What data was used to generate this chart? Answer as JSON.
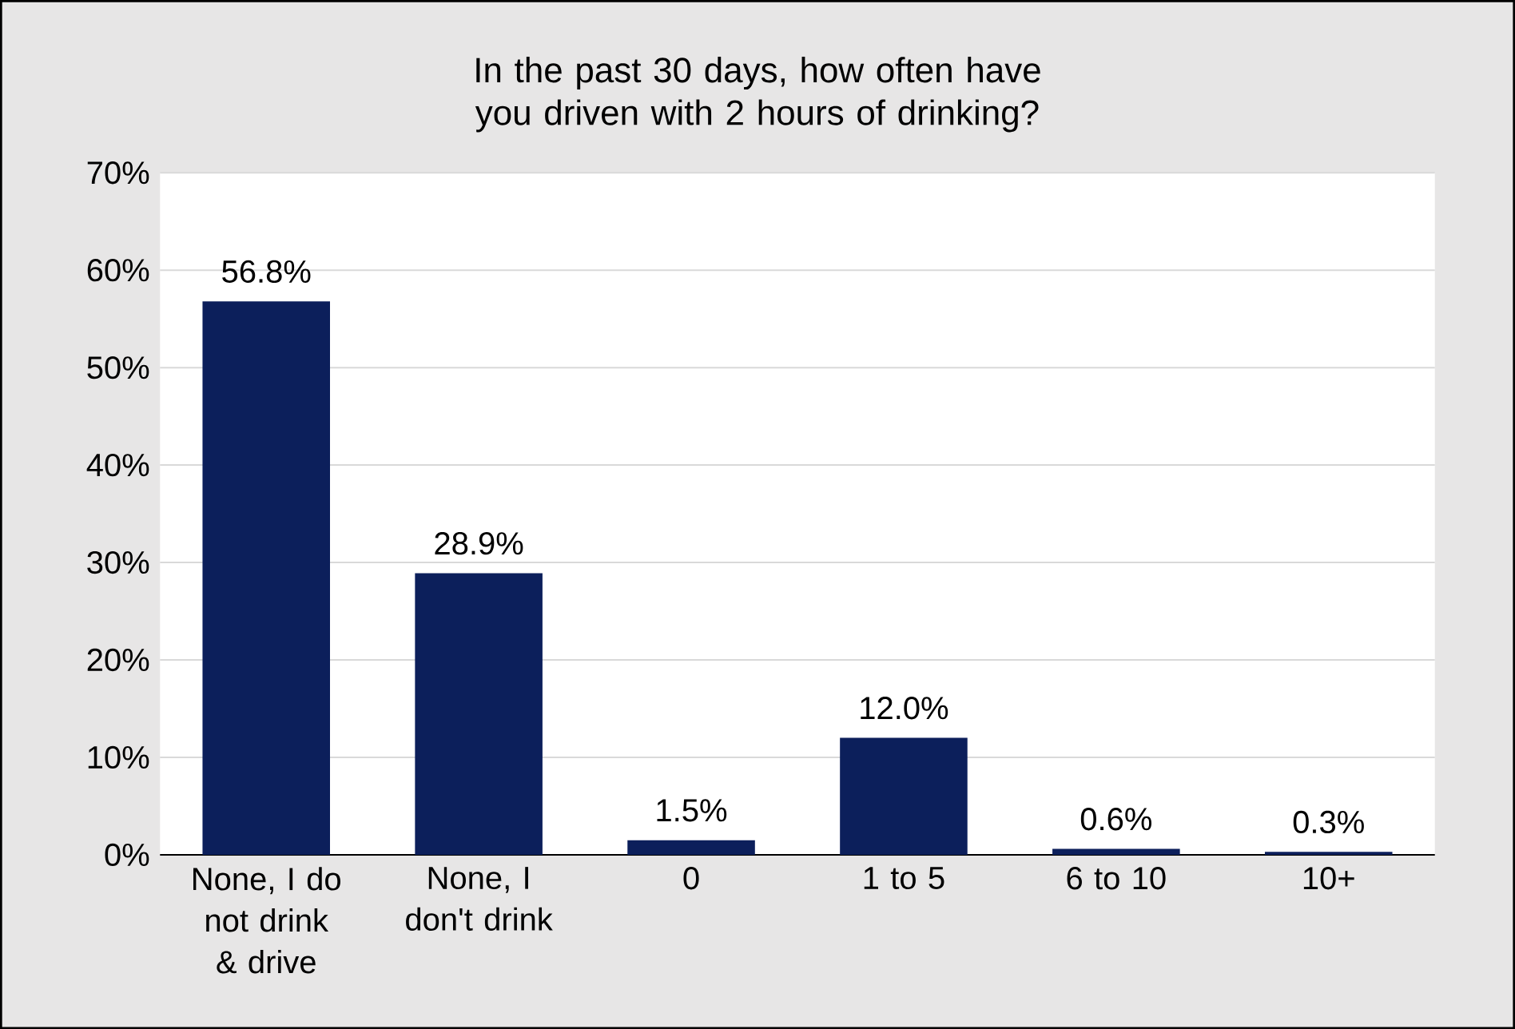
{
  "chart_data": {
    "type": "bar",
    "title": "In the past 30 days, how often have you driven with 2 hours of drinking?",
    "categories": [
      "None, I do not drink & drive",
      "None, I don't drink",
      "0",
      "1 to 5",
      "6 to 10",
      "10+"
    ],
    "values": [
      56.8,
      28.9,
      1.5,
      12.0,
      0.6,
      0.3
    ],
    "value_labels": [
      "56.8%",
      "28.9%",
      "1.5%",
      "12.0%",
      "0.6%",
      "0.3%"
    ],
    "color": "#0c1f5b",
    "ylim": [
      0,
      70
    ],
    "yticks": [
      {
        "value": 0,
        "label": "0%"
      },
      {
        "value": 10,
        "label": "10%"
      },
      {
        "value": 20,
        "label": "20%"
      },
      {
        "value": 30,
        "label": "30%"
      },
      {
        "value": 40,
        "label": "40%"
      },
      {
        "value": 50,
        "label": "50%"
      },
      {
        "value": 60,
        "label": "60%"
      },
      {
        "value": 70,
        "label": "70%"
      }
    ],
    "grid": "y"
  }
}
